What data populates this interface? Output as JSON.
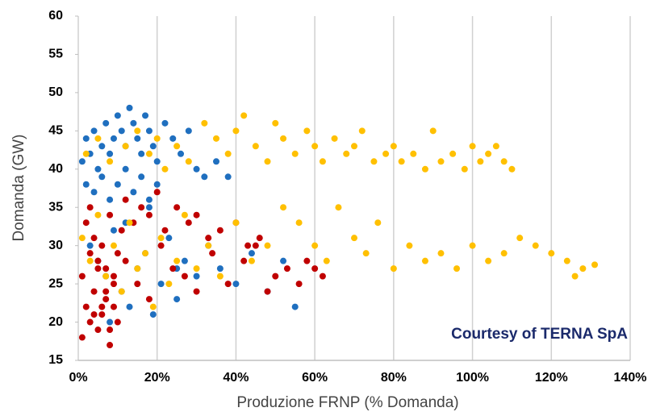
{
  "chart_data": {
    "type": "scatter",
    "xlabel": "Produzione FRNP (% Domanda)",
    "ylabel": "Domanda (GW)",
    "annotation": "Courtesy of TERNA SpA",
    "xlim": [
      0,
      140
    ],
    "ylim": [
      15,
      60
    ],
    "xticks": [
      {
        "value": 0,
        "label": "0%"
      },
      {
        "value": 20,
        "label": "20%"
      },
      {
        "value": 40,
        "label": "40%"
      },
      {
        "value": 60,
        "label": "60%"
      },
      {
        "value": 80,
        "label": "80%"
      },
      {
        "value": 100,
        "label": "100%"
      },
      {
        "value": 120,
        "label": "120%"
      },
      {
        "value": 140,
        "label": "140%"
      }
    ],
    "yticks": [
      15,
      20,
      25,
      30,
      35,
      40,
      45,
      50,
      55,
      60
    ],
    "grid": "x",
    "series": [
      {
        "color": "#1f6fbf",
        "x": [
          1,
          2,
          3,
          4,
          5,
          6,
          7,
          8,
          9,
          10,
          11,
          12,
          13,
          14,
          15,
          16,
          17,
          18,
          19,
          20,
          22,
          24,
          26,
          28,
          30,
          32,
          35,
          38,
          2,
          4,
          6,
          8,
          10,
          12,
          14,
          16,
          18,
          20,
          3,
          5,
          7,
          9,
          11,
          13,
          15,
          17,
          19,
          21,
          23,
          25,
          27,
          30,
          33,
          36,
          40,
          44,
          48,
          52,
          55,
          8,
          12,
          18,
          25
        ],
        "values": [
          41,
          44,
          42,
          45,
          40,
          43,
          46,
          42,
          44,
          47,
          45,
          43,
          48,
          46,
          44,
          42,
          47,
          45,
          43,
          41,
          46,
          44,
          42,
          45,
          40,
          39,
          41,
          39,
          38,
          37,
          39,
          36,
          38,
          40,
          37,
          39,
          36,
          38,
          30,
          28,
          26,
          32,
          24,
          22,
          27,
          29,
          21,
          25,
          31,
          23,
          28,
          26,
          30,
          27,
          25,
          29,
          24,
          28,
          22,
          20,
          33,
          35,
          27
        ]
      },
      {
        "color": "#c00000",
        "x": [
          1,
          2,
          3,
          4,
          5,
          6,
          7,
          8,
          9,
          10,
          2,
          3,
          4,
          5,
          6,
          7,
          8,
          9,
          10,
          11,
          12,
          14,
          16,
          18,
          20,
          22,
          25,
          28,
          30,
          33,
          36,
          40,
          43,
          46,
          1,
          3,
          5,
          7,
          9,
          12,
          15,
          18,
          21,
          24,
          27,
          30,
          34,
          38,
          42,
          45,
          48,
          50,
          53,
          56,
          58,
          60,
          62,
          4,
          6,
          8
        ],
        "values": [
          18,
          22,
          20,
          24,
          19,
          21,
          23,
          17,
          25,
          20,
          33,
          35,
          31,
          28,
          30,
          27,
          34,
          26,
          29,
          32,
          36,
          33,
          35,
          34,
          37,
          32,
          35,
          33,
          34,
          31,
          32,
          33,
          30,
          31,
          26,
          29,
          27,
          24,
          22,
          28,
          25,
          23,
          30,
          27,
          26,
          24,
          29,
          25,
          28,
          30,
          24,
          26,
          27,
          25,
          28,
          27,
          26,
          21,
          22,
          19
        ]
      },
      {
        "color": "#ffc000",
        "x": [
          2,
          5,
          8,
          12,
          15,
          18,
          20,
          22,
          25,
          28,
          32,
          35,
          38,
          40,
          42,
          45,
          48,
          50,
          52,
          55,
          58,
          60,
          62,
          65,
          68,
          70,
          72,
          75,
          78,
          80,
          82,
          85,
          88,
          90,
          92,
          95,
          98,
          100,
          102,
          104,
          106,
          108,
          110,
          1,
          3,
          5,
          7,
          9,
          11,
          13,
          15,
          17,
          19,
          21,
          23,
          25,
          27,
          30,
          33,
          36,
          40,
          44,
          48,
          52,
          56,
          60,
          63,
          66,
          70,
          73,
          76,
          80,
          84,
          88,
          92,
          96,
          100,
          104,
          108,
          112,
          116,
          120,
          124,
          126,
          128,
          131
        ],
        "values": [
          42,
          44,
          41,
          43,
          45,
          42,
          44,
          40,
          43,
          41,
          46,
          44,
          42,
          45,
          47,
          43,
          41,
          46,
          44,
          42,
          45,
          43,
          41,
          44,
          42,
          43,
          45,
          41,
          42,
          43,
          41,
          42,
          40,
          45,
          41,
          42,
          40,
          43,
          41,
          42,
          43,
          41,
          40,
          31,
          28,
          34,
          26,
          30,
          24,
          33,
          27,
          29,
          22,
          31,
          25,
          28,
          34,
          27,
          30,
          26,
          33,
          28,
          30,
          35,
          33,
          30,
          28,
          35,
          31,
          29,
          33,
          27,
          30,
          28,
          29,
          27,
          30,
          28,
          29,
          31,
          30,
          29,
          28,
          26,
          27,
          27.5
        ]
      }
    ]
  }
}
